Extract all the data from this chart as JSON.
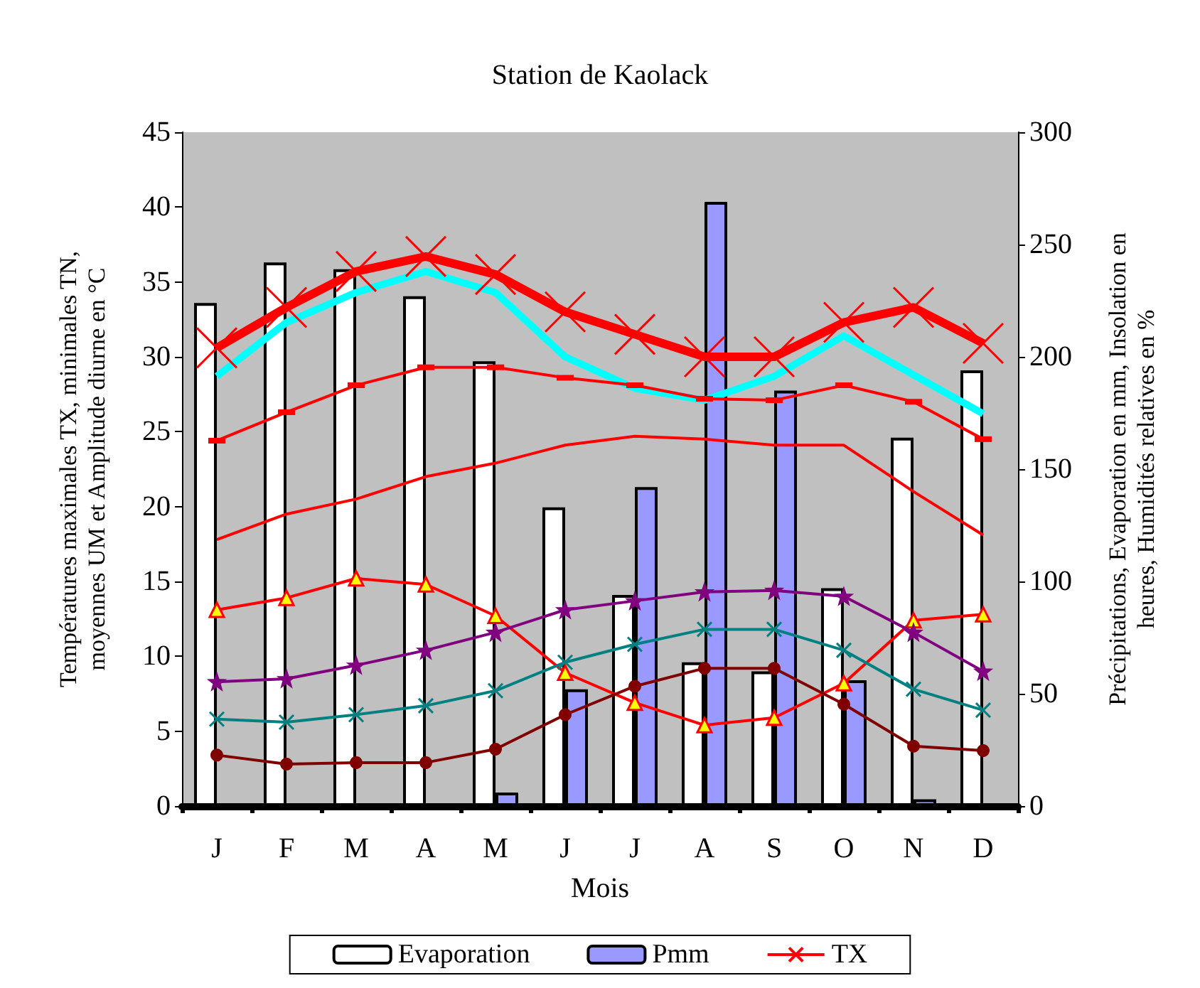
{
  "chart_data": {
    "type": "line",
    "title": "Station de Kaolack",
    "xlabel": "Mois",
    "ylabel": "Températures maximales TX, minimales TN,\nmoyennes UM et Amplitude diurne en °C",
    "y2label": "Précipitations, Evaporation en mm, Insolation en\nheures, Humidités relatives en %",
    "categories": [
      "J",
      "F",
      "M",
      "A",
      "M",
      "J",
      "J",
      "A",
      "S",
      "O",
      "N",
      "D"
    ],
    "ylim": [
      0,
      45
    ],
    "yticks": [
      0,
      5,
      10,
      15,
      20,
      25,
      30,
      35,
      40,
      45
    ],
    "y2lim": [
      0,
      300
    ],
    "y2ticks": [
      0,
      50,
      100,
      150,
      200,
      250,
      300
    ],
    "grid": false,
    "legend": "bottom",
    "series": [
      {
        "name": "Evaporation",
        "type": "bar",
        "axis": "y2",
        "color": "#ffffff",
        "values": [
          224,
          242,
          239,
          227,
          198,
          133,
          94,
          64,
          60,
          97,
          164,
          194
        ]
      },
      {
        "name": "Pmm",
        "type": "bar",
        "axis": "y2",
        "color": "#9999ff",
        "values": [
          0,
          0,
          0,
          0,
          6,
          52,
          142,
          269,
          185,
          56,
          3,
          0
        ]
      },
      {
        "color": "#00ffff",
        "marker": "none",
        "values": [
          28.7,
          32.3,
          34.3,
          35.7,
          34.3,
          30.0,
          27.9,
          27.1,
          28.7,
          31.4,
          28.8,
          26.2
        ]
      },
      {
        "color": "#ff0000",
        "marker": "square",
        "values": [
          24.4,
          26.3,
          28.1,
          29.3,
          29.3,
          28.6,
          28.1,
          27.2,
          27.1,
          28.1,
          27.0,
          24.5
        ]
      },
      {
        "color": "#ff0000",
        "marker": "none",
        "values": [
          17.8,
          19.5,
          20.5,
          22.0,
          22.9,
          24.1,
          24.7,
          24.5,
          24.1,
          24.1,
          21.0,
          18.1
        ]
      },
      {
        "color": "#ff0000",
        "marker": "triangle",
        "values": [
          13.1,
          13.9,
          15.2,
          14.8,
          12.7,
          8.9,
          6.9,
          5.4,
          5.9,
          8.2,
          12.4,
          12.8
        ]
      },
      {
        "color": "#800080",
        "marker": "star",
        "values": [
          8.3,
          8.5,
          9.4,
          10.4,
          11.6,
          13.1,
          13.7,
          14.3,
          14.4,
          14.0,
          11.6,
          9.0
        ]
      },
      {
        "color": "#008080",
        "marker": "cross",
        "values": [
          5.8,
          5.6,
          6.1,
          6.7,
          7.7,
          9.6,
          10.8,
          11.8,
          11.8,
          10.4,
          7.8,
          6.4
        ]
      },
      {
        "color": "#800000",
        "marker": "circle",
        "values": [
          3.4,
          2.8,
          2.9,
          2.9,
          3.8,
          6.1,
          8.0,
          9.2,
          9.2,
          6.8,
          4.0,
          3.7
        ]
      },
      {
        "name": "TX",
        "color": "#ff0000",
        "marker": "cross",
        "values": [
          30.6,
          33.3,
          35.7,
          36.7,
          35.5,
          33.0,
          31.5,
          30.0,
          30.0,
          32.3,
          33.3,
          30.9
        ]
      }
    ]
  }
}
